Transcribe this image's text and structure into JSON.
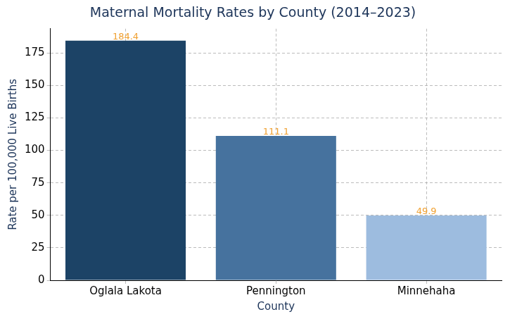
{
  "chart_data": {
    "type": "bar",
    "title": "Maternal Mortality Rates by County (2014–2023)",
    "x_label": "County",
    "y_label": "Rate per 100,000 Live Births",
    "categories": [
      "Oglala Lakota",
      "Pennington",
      "Minnehaha"
    ],
    "values": [
      184.4,
      111.1,
      49.9
    ],
    "colors": [
      "#1c4366",
      "#46729e",
      "#9dbcdf"
    ],
    "ylim": [
      0,
      193.6
    ],
    "yticks": [
      0,
      25,
      50,
      75,
      100,
      125,
      150,
      175
    ],
    "grid": true,
    "data_labels": true
  }
}
